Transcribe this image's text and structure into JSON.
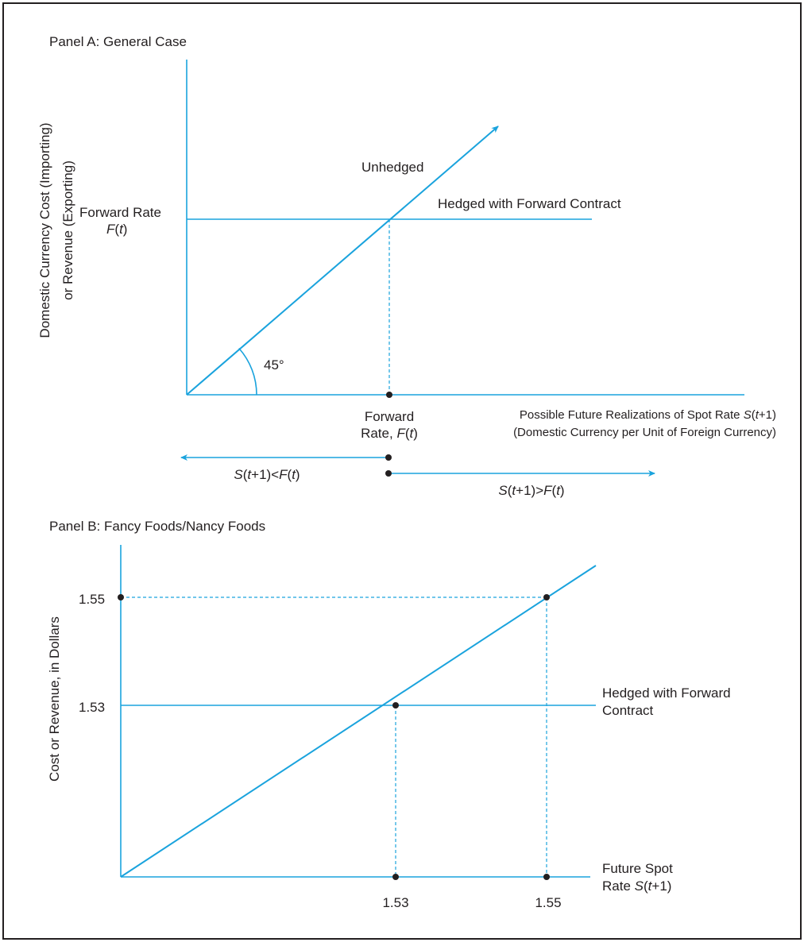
{
  "colors": {
    "accent": "#1aa3dd",
    "text": "#231f20",
    "border": "#231f20"
  },
  "panel_a": {
    "title": "Panel A: General Case",
    "y_axis_label_line1": "Domestic Currency Cost (Importing)",
    "y_axis_label_line2": "or Revenue (Exporting)",
    "forward_rate_label": "Forward Rate",
    "forward_rate_symbol": {
      "f": "F",
      "open": "(",
      "t": "t",
      "close": ")"
    },
    "unhedged_label": "Unhedged",
    "hedged_label": "Hedged with Forward Contract",
    "angle_label": "45°",
    "x_forward_label_line1": "Forward",
    "x_forward_label_line2_prefix": "Rate, ",
    "x_axis_label_line1": "Possible Future Realizations of Spot Rate ",
    "x_axis_label_line2": "(Domestic Currency per Unit of Foreign Currency)",
    "spot_symbol": {
      "s": "S",
      "open": "(",
      "t": "t",
      "plus": "+1)"
    },
    "less_than": "<",
    "greater_than": ">"
  },
  "panel_b": {
    "title": "Panel B: Fancy Foods/Nancy Foods",
    "y_axis_label": "Cost or Revenue, in Dollars",
    "y_tick_high": "1.55",
    "y_tick_low": "1.53",
    "x_tick_low": "1.53",
    "x_tick_high": "1.55",
    "hedged_label_line1": "Hedged with Forward",
    "hedged_label_line2": "Contract",
    "x_axis_label_line1": "Future Spot",
    "x_axis_label_line2_prefix": "Rate ",
    "spot_symbol": {
      "s": "S",
      "open": "(",
      "t": "t",
      "plus": "+1)"
    }
  }
}
